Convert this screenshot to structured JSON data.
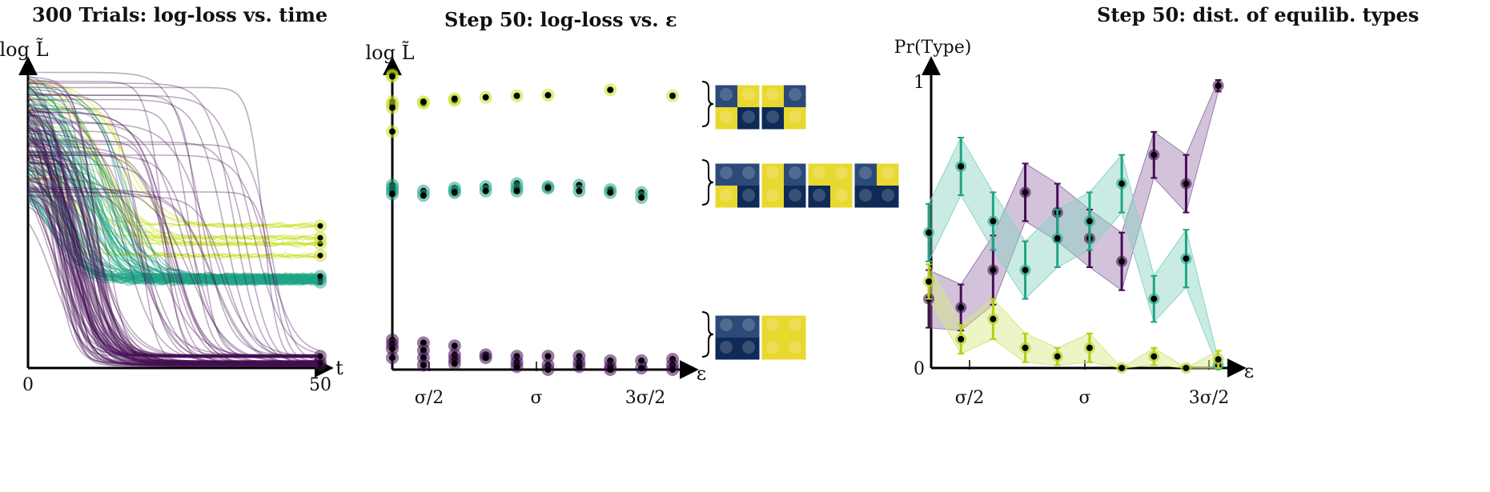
{
  "chart_data": [
    {
      "type": "line",
      "title": "300 Trials: log-loss vs. time",
      "ylabel": "log L̃",
      "xlabel": "t",
      "xticks": [
        "0",
        "50"
      ],
      "xlim": [
        0,
        50
      ],
      "groups": [
        {
          "name": "yellow",
          "color": "#c8e020",
          "final_values": [
            0.42,
            0.44,
            0.48,
            0.38
          ],
          "curve_count": 25
        },
        {
          "name": "teal",
          "color": "#20a486",
          "final_values": [
            0.29,
            0.3,
            0.31
          ],
          "curve_count": 70
        },
        {
          "name": "purple",
          "color": "#440d54",
          "final_values": [
            0.01,
            0.02,
            0.04
          ],
          "curve_count": 120
        }
      ]
    },
    {
      "type": "scatter",
      "title": "Step 50: log-loss vs. ε",
      "ylabel": "log L̃",
      "xlabel": "ε",
      "xticks": [
        "σ/2",
        "σ",
        "3σ/2"
      ],
      "xtick_values": [
        0.5,
        1.0,
        1.5
      ],
      "xlim": [
        0,
        1.4
      ],
      "series": [
        {
          "name": "yellow",
          "color": "#c8e020",
          "points": [
            [
              0.0,
              0.99
            ],
            [
              0.0,
              0.985
            ],
            [
              0.0,
              0.9
            ],
            [
              0.0,
              0.89
            ],
            [
              0.0,
              0.88
            ],
            [
              0.0,
              0.8
            ],
            [
              0.15,
              0.895
            ],
            [
              0.15,
              0.9
            ],
            [
              0.3,
              0.905
            ],
            [
              0.3,
              0.91
            ],
            [
              0.45,
              0.915
            ],
            [
              0.6,
              0.92
            ],
            [
              0.75,
              0.922
            ],
            [
              1.05,
              0.94
            ],
            [
              1.35,
              0.92
            ]
          ]
        },
        {
          "name": "teal",
          "color": "#20a486",
          "points": [
            [
              0.0,
              0.62
            ],
            [
              0.0,
              0.61
            ],
            [
              0.0,
              0.6
            ],
            [
              0.0,
              0.59
            ],
            [
              0.15,
              0.6
            ],
            [
              0.15,
              0.585
            ],
            [
              0.3,
              0.61
            ],
            [
              0.3,
              0.6
            ],
            [
              0.3,
              0.595
            ],
            [
              0.45,
              0.615
            ],
            [
              0.45,
              0.6
            ],
            [
              0.6,
              0.625
            ],
            [
              0.6,
              0.61
            ],
            [
              0.6,
              0.6
            ],
            [
              0.75,
              0.615
            ],
            [
              0.75,
              0.61
            ],
            [
              0.9,
              0.62
            ],
            [
              0.9,
              0.6
            ],
            [
              1.05,
              0.605
            ],
            [
              1.05,
              0.595
            ],
            [
              1.2,
              0.595
            ],
            [
              1.2,
              0.578
            ]
          ]
        },
        {
          "name": "purple",
          "color": "#440d54",
          "points": [
            [
              0.0,
              0.1
            ],
            [
              0.0,
              0.085
            ],
            [
              0.0,
              0.07
            ],
            [
              0.0,
              0.04
            ],
            [
              0.15,
              0.09
            ],
            [
              0.15,
              0.065
            ],
            [
              0.15,
              0.04
            ],
            [
              0.15,
              0.015
            ],
            [
              0.3,
              0.08
            ],
            [
              0.3,
              0.05
            ],
            [
              0.3,
              0.035
            ],
            [
              0.3,
              0.02
            ],
            [
              0.45,
              0.05
            ],
            [
              0.45,
              0.04
            ],
            [
              0.6,
              0.045
            ],
            [
              0.6,
              0.025
            ],
            [
              0.6,
              0.01
            ],
            [
              0.75,
              0.045
            ],
            [
              0.75,
              0.015
            ],
            [
              0.75,
              0.0
            ],
            [
              0.9,
              0.045
            ],
            [
              0.9,
              0.025
            ],
            [
              0.9,
              0.01
            ],
            [
              1.05,
              0.03
            ],
            [
              1.05,
              0.01
            ],
            [
              1.05,
              0.0
            ],
            [
              1.2,
              0.03
            ],
            [
              1.2,
              0.005
            ],
            [
              1.35,
              0.035
            ],
            [
              1.35,
              0.015
            ],
            [
              1.35,
              0.0
            ]
          ]
        }
      ],
      "thumbnails": [
        {
          "group": "yellow",
          "patterns": [
            [
              "#2c4a78",
              "#e8d830",
              "#e8d830",
              "#0e2a56"
            ],
            [
              "#e8d830",
              "#2c4a78",
              "#0e2a56",
              "#e8d830"
            ]
          ]
        },
        {
          "group": "teal",
          "patterns": [
            [
              "#2c4a78",
              "#2c4a78",
              "#e8d830",
              "#0e2a56"
            ],
            [
              "#e8d830",
              "#2c4a78",
              "#e8d830",
              "#0e2a56"
            ],
            [
              "#e8d830",
              "#e8d830",
              "#0e2a56",
              "#e8d830"
            ],
            [
              "#2c4a78",
              "#e8d830",
              "#0e2a56",
              "#0e2a56"
            ]
          ]
        },
        {
          "group": "purple",
          "patterns": [
            [
              "#2c4a78",
              "#2c4a78",
              "#0e2a56",
              "#0e2a56"
            ],
            [
              "#e8d830",
              "#e8d830",
              "#e8d830",
              "#e8d830"
            ]
          ]
        }
      ]
    },
    {
      "type": "line",
      "title": "Step 50: dist. of equilib. types",
      "ylabel": "Pr(Type)",
      "xlabel": "ε",
      "yticks": [
        "0",
        "1"
      ],
      "xticks": [
        "σ/2",
        "σ",
        "3σ/2"
      ],
      "xtick_values": [
        0.5,
        1.0,
        1.5
      ],
      "xlim": [
        0.3,
        1.7
      ],
      "ylim": [
        0,
        1
      ],
      "series": [
        {
          "name": "purple",
          "color": "#440d54",
          "fill": "#9b7bb0",
          "x": [
            0.3,
            0.45,
            0.6,
            0.75,
            0.9,
            1.05,
            1.2,
            1.35,
            1.5,
            1.65
          ],
          "values": [
            0.24,
            0.21,
            0.34,
            0.61,
            0.54,
            0.45,
            0.37,
            0.74,
            0.64,
            0.98
          ],
          "err": [
            0.1,
            0.08,
            0.12,
            0.1,
            0.1,
            0.1,
            0.1,
            0.08,
            0.1,
            0.02
          ]
        },
        {
          "name": "teal",
          "color": "#20a486",
          "fill": "#8ad3c2",
          "x": [
            0.3,
            0.45,
            0.6,
            0.75,
            0.9,
            1.05,
            1.2,
            1.35,
            1.5,
            1.65
          ],
          "values": [
            0.47,
            0.7,
            0.51,
            0.34,
            0.45,
            0.51,
            0.64,
            0.24,
            0.38,
            0.01
          ],
          "err": [
            0.1,
            0.1,
            0.1,
            0.1,
            0.1,
            0.1,
            0.1,
            0.08,
            0.1,
            0.02
          ]
        },
        {
          "name": "yellow",
          "color": "#b5cf10",
          "fill": "#d4e880",
          "x": [
            0.3,
            0.45,
            0.6,
            0.75,
            0.9,
            1.05,
            1.2,
            1.35,
            1.5,
            1.65
          ],
          "values": [
            0.3,
            0.1,
            0.17,
            0.07,
            0.04,
            0.07,
            0.0,
            0.04,
            0.0,
            0.03
          ],
          "err": [
            0.06,
            0.05,
            0.07,
            0.05,
            0.03,
            0.05,
            0.0,
            0.03,
            0.0,
            0.03
          ]
        }
      ]
    }
  ]
}
